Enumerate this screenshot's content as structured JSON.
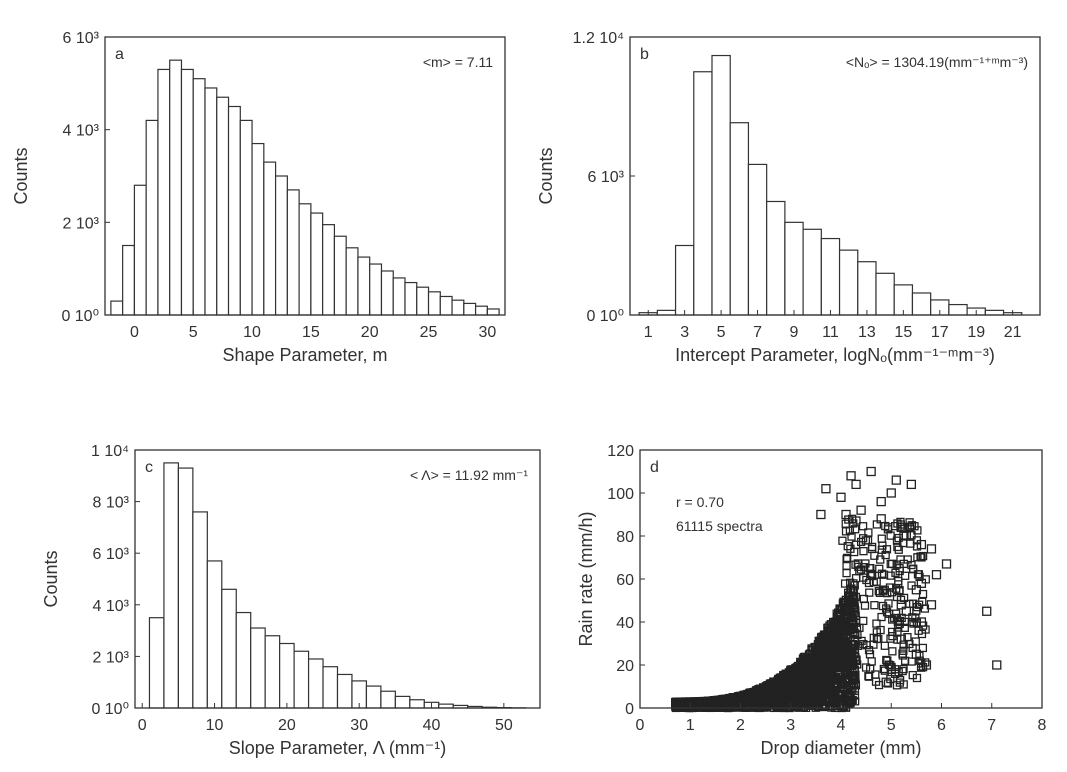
{
  "chart_data": [
    {
      "panel": "a",
      "type": "bar",
      "annotation": "<m> = 7.11",
      "xlabel": "Shape Parameter, m",
      "ylabel": "Counts",
      "xlim": [
        -2.5,
        31.5
      ],
      "ylim": [
        0,
        6000
      ],
      "xticks": [
        0,
        5,
        10,
        15,
        20,
        25,
        30
      ],
      "xtick_labels": [
        "0",
        "5",
        "10",
        "15",
        "20",
        "25",
        "30"
      ],
      "yticks": [
        0,
        2000,
        4000,
        6000
      ],
      "ytick_labels": [
        "0 10⁰",
        "2 10³",
        "4 10³",
        "6 10³"
      ],
      "bin_width": 1,
      "bin_start": -2,
      "values": [
        300,
        1500,
        2800,
        4200,
        5300,
        5500,
        5300,
        5100,
        4900,
        4700,
        4500,
        4200,
        3700,
        3300,
        3000,
        2700,
        2400,
        2200,
        1950,
        1700,
        1450,
        1250,
        1100,
        950,
        800,
        700,
        600,
        500,
        400,
        320,
        250,
        190,
        130
      ]
    },
    {
      "panel": "b",
      "type": "bar",
      "annotation": "<Nₒ> = 1304.19(mm⁻¹⁺ᵐm⁻³)",
      "xlabel": "Intercept Parameter, logNₒ(mm⁻¹⁻ᵐm⁻³)",
      "ylabel": "Counts",
      "xlim": [
        0,
        22.5
      ],
      "ylim": [
        0,
        12000
      ],
      "xticks": [
        1,
        3,
        5,
        7,
        9,
        11,
        13,
        15,
        17,
        19,
        21
      ],
      "xtick_labels": [
        "1",
        "3",
        "5",
        "7",
        "9",
        "11",
        "13",
        "15",
        "17",
        "19",
        "21"
      ],
      "yticks": [
        0,
        6000,
        12000
      ],
      "ytick_labels": [
        "0 10⁰",
        "6 10³",
        "1.2 10⁴"
      ],
      "bin_width": 1,
      "bin_start": 0.5,
      "values": [
        100,
        200,
        3000,
        10500,
        11200,
        8300,
        6500,
        4900,
        4000,
        3700,
        3300,
        2800,
        2300,
        1800,
        1300,
        950,
        650,
        450,
        300,
        200,
        100
      ]
    },
    {
      "panel": "c",
      "type": "bar",
      "annotation": "< Λ> = 11.92 mm⁻¹",
      "xlabel": "Slope Parameter,  Λ (mm⁻¹)",
      "ylabel": "Counts",
      "xlim": [
        -1,
        55
      ],
      "ylim": [
        0,
        10000
      ],
      "xticks": [
        0,
        10,
        20,
        30,
        40,
        50
      ],
      "xtick_labels": [
        "0",
        "10",
        "20",
        "30",
        "40",
        "50"
      ],
      "yticks": [
        0,
        2000,
        4000,
        6000,
        8000,
        10000
      ],
      "ytick_labels": [
        "0 10⁰",
        "2 10³",
        "4 10³",
        "6 10³",
        "8 10³",
        "1 10⁴"
      ],
      "bin_width": 2,
      "bin_start": 1,
      "values": [
        3500,
        9500,
        9300,
        7600,
        5700,
        4600,
        3700,
        3100,
        2800,
        2500,
        2200,
        1900,
        1600,
        1300,
        1050,
        850,
        650,
        450,
        320,
        220,
        150,
        100,
        60,
        30,
        15,
        5
      ]
    },
    {
      "panel": "d",
      "type": "scatter",
      "annotation": [
        "r = 0.70",
        "61115 spectra"
      ],
      "xlabel": "Drop diameter (mm)",
      "ylabel": "Rain rate (mm/h)",
      "xlim": [
        0,
        8
      ],
      "ylim": [
        0,
        120
      ],
      "xticks": [
        0,
        1,
        2,
        3,
        4,
        5,
        6,
        7,
        8
      ],
      "xtick_labels": [
        "0",
        "1",
        "2",
        "3",
        "4",
        "5",
        "6",
        "7",
        "8"
      ],
      "yticks": [
        0,
        20,
        40,
        60,
        80,
        100,
        120
      ],
      "ytick_labels": [
        "0",
        "20",
        "40",
        "60",
        "80",
        "100",
        "120"
      ],
      "points": [
        [
          4.2,
          108
        ],
        [
          4.6,
          110
        ],
        [
          4.3,
          104
        ],
        [
          5.1,
          106
        ],
        [
          5.4,
          104
        ],
        [
          5.0,
          100
        ],
        [
          3.7,
          102
        ],
        [
          4.0,
          98
        ],
        [
          4.8,
          96
        ],
        [
          3.6,
          90
        ],
        [
          5.8,
          74
        ],
        [
          6.1,
          67
        ],
        [
          5.6,
          76
        ],
        [
          6.9,
          45
        ],
        [
          7.1,
          20
        ],
        [
          5.7,
          20
        ],
        [
          5.9,
          62
        ],
        [
          5.5,
          55
        ],
        [
          5.3,
          45
        ],
        [
          5.6,
          40
        ],
        [
          5.2,
          32
        ],
        [
          5.5,
          25
        ],
        [
          5.0,
          18
        ],
        [
          4.9,
          12
        ],
        [
          5.2,
          48
        ],
        [
          5.8,
          48
        ],
        [
          4.8,
          88
        ],
        [
          5.2,
          84
        ],
        [
          5.3,
          80
        ],
        [
          5.6,
          58
        ],
        [
          4.4,
          92
        ],
        [
          4.1,
          90
        ]
      ]
    }
  ]
}
